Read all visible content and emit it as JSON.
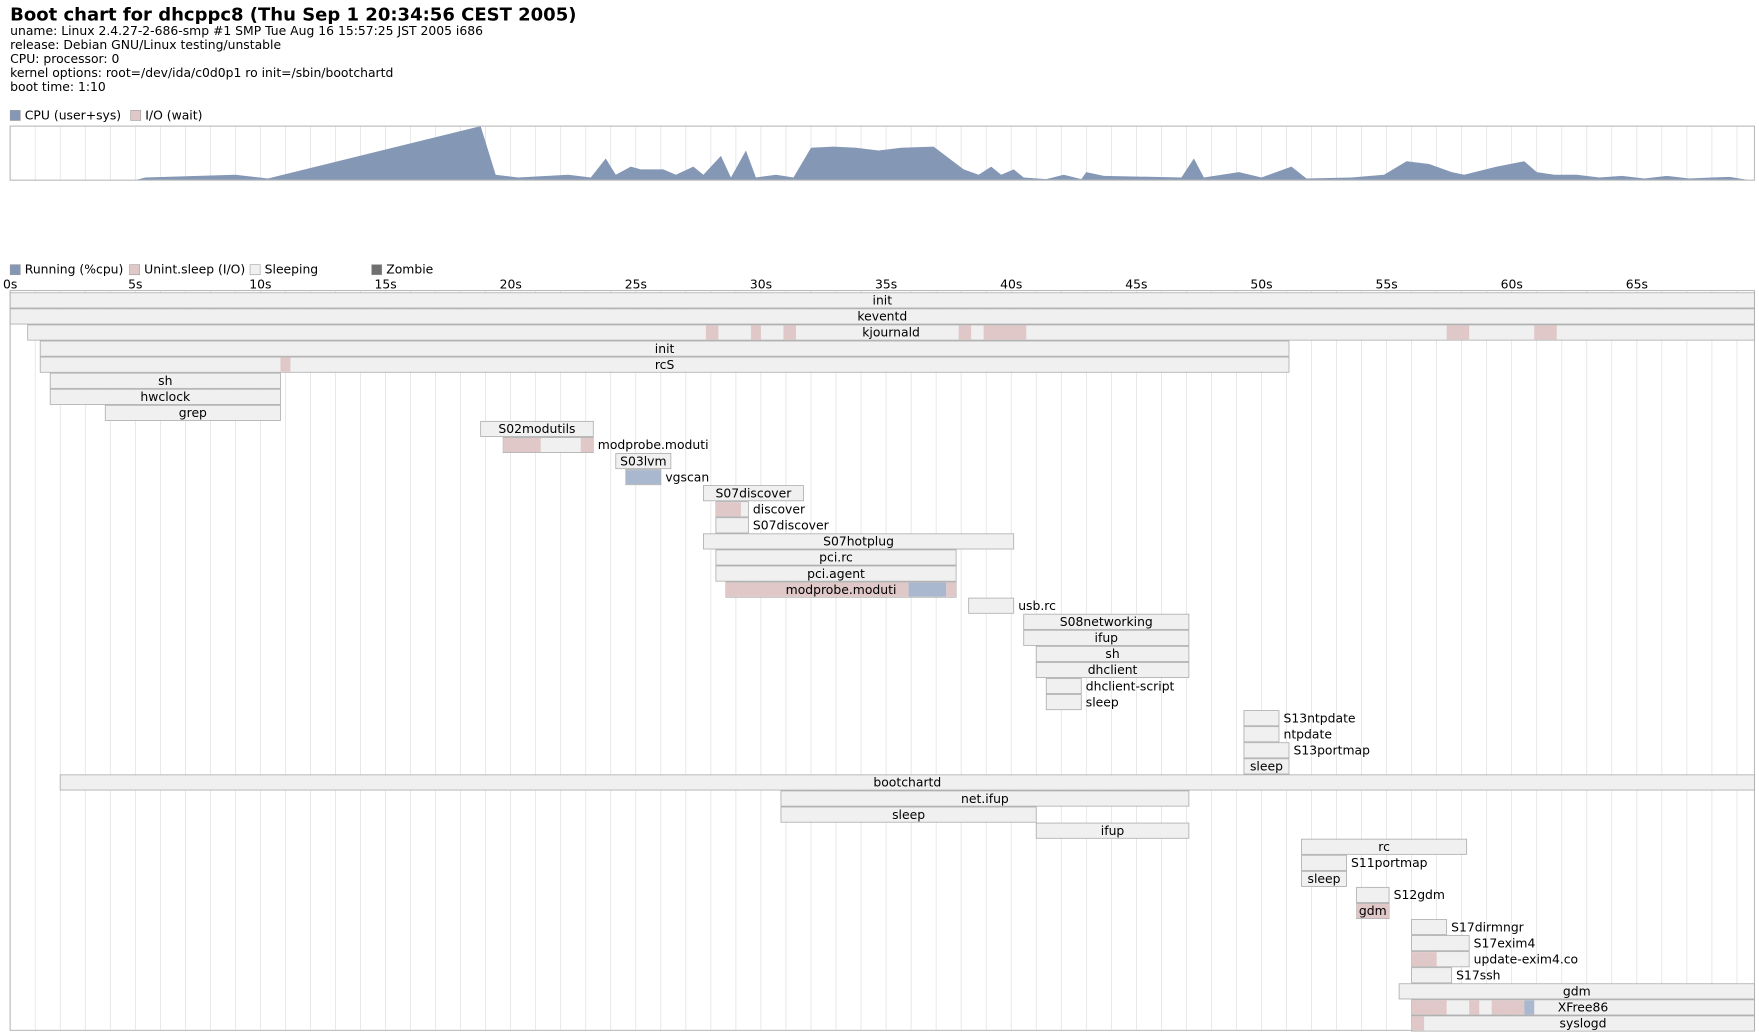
{
  "header": {
    "title": "Boot chart for dhcppc8 (Thu Sep  1 20:34:56 CEST 2005)",
    "lines": [
      "uname: Linux 2.4.27-2-686-smp #1 SMP Tue Aug 16 15:57:25 JST 2005 i686",
      "release: Debian GNU/Linux testing/unstable",
      "CPU: processor: 0",
      "kernel options: root=/dev/ida/c0d0p1 ro  init=/sbin/bootchartd",
      "boot time: 1:10"
    ]
  },
  "chart_data": [
    {
      "type": "area",
      "x": [
        0,
        5.0,
        5.4,
        9.0,
        10.3,
        18.8,
        19.4,
        20.3,
        22.3,
        23.2,
        23.8,
        24.2,
        24.8,
        25.2,
        26.1,
        26.6,
        27.3,
        27.7,
        28.4,
        28.8,
        29.4,
        29.8,
        30.6,
        31.3,
        32.0,
        32.9,
        33.8,
        34.7,
        35.6,
        36.9,
        38.1,
        38.7,
        39.2,
        39.6,
        40.1,
        40.5,
        41.4,
        42.1,
        42.8,
        43.0,
        43.7,
        46.8,
        47.3,
        47.7,
        49.1,
        50.0,
        51.2,
        51.8,
        53.6,
        54.9,
        55.8,
        56.7,
        57.6,
        58.1,
        59.4,
        60.5,
        61.0,
        61.7,
        62.6,
        63.5,
        64.4,
        65.3,
        66.2,
        67.1,
        68.0,
        68.7,
        69.5
      ],
      "series": [
        {
          "name": "CPU (user+sys)",
          "color": "#8497b5",
          "values": [
            0,
            0,
            5,
            10,
            3,
            100,
            10,
            5,
            10,
            5,
            40,
            10,
            25,
            20,
            20,
            10,
            25,
            10,
            45,
            5,
            55,
            5,
            10,
            5,
            60,
            62,
            60,
            55,
            60,
            62,
            20,
            10,
            25,
            10,
            20,
            5,
            2,
            10,
            2,
            15,
            8,
            5,
            40,
            5,
            15,
            5,
            25,
            3,
            5,
            10,
            35,
            30,
            15,
            10,
            25,
            35,
            15,
            10,
            10,
            5,
            8,
            3,
            8,
            3,
            5,
            6,
            0
          ]
        },
        {
          "name": "I/O (wait)",
          "color": "#e0c8c8"
        }
      ],
      "xlim": [
        0,
        69.7
      ],
      "ylim": [
        0,
        100
      ],
      "xgrid": [
        0,
        1,
        2,
        3,
        4,
        5,
        6,
        7,
        8,
        9,
        10,
        11,
        12,
        13,
        14,
        15,
        16,
        17,
        18,
        19,
        20,
        21,
        22,
        23,
        24,
        25,
        26,
        27,
        28,
        29,
        30,
        31,
        32,
        33,
        34,
        35,
        36,
        37,
        38,
        39,
        40,
        41,
        42,
        43,
        44,
        45,
        46,
        47,
        48,
        49,
        50,
        51,
        52,
        53,
        54,
        55,
        56,
        57,
        58,
        59,
        60,
        61,
        62,
        63,
        64,
        65,
        66,
        67,
        68,
        69
      ]
    },
    {
      "type": "gantt",
      "states": [
        {
          "name": "Running (%cpu)",
          "color": "#8497b5"
        },
        {
          "name": "Unint.sleep (I/O)",
          "color": "#e0c8c8"
        },
        {
          "name": "Sleeping",
          "color": "#f0f0f0"
        },
        {
          "name": "Zombie",
          "color": "#707070"
        }
      ],
      "xlim": [
        0,
        69.7
      ],
      "xticks": [
        {
          "value": 0,
          "label": "0s"
        },
        {
          "value": 5,
          "label": "5s"
        },
        {
          "value": 10,
          "label": "10s"
        },
        {
          "value": 15,
          "label": "15s"
        },
        {
          "value": 20,
          "label": "20s"
        },
        {
          "value": 25,
          "label": "25s"
        },
        {
          "value": 30,
          "label": "30s"
        },
        {
          "value": 35,
          "label": "35s"
        },
        {
          "value": 40,
          "label": "40s"
        },
        {
          "value": 45,
          "label": "45s"
        },
        {
          "value": 50,
          "label": "50s"
        },
        {
          "value": 55,
          "label": "55s"
        },
        {
          "value": 60,
          "label": "60s"
        },
        {
          "value": 65,
          "label": "65s"
        }
      ],
      "xgrid": [
        0,
        1,
        2,
        3,
        4,
        5,
        6,
        7,
        8,
        9,
        10,
        11,
        12,
        13,
        14,
        15,
        16,
        17,
        18,
        19,
        20,
        21,
        22,
        23,
        24,
        25,
        26,
        27,
        28,
        29,
        30,
        31,
        32,
        33,
        34,
        35,
        36,
        37,
        38,
        39,
        40,
        41,
        42,
        43,
        44,
        45,
        46,
        47,
        48,
        49,
        50,
        51,
        52,
        53,
        54,
        55,
        56,
        57,
        58,
        59,
        60,
        61,
        62,
        63,
        64,
        65,
        66,
        67,
        68,
        69
      ],
      "processes": [
        {
          "name": "init",
          "start": 0,
          "end": 69.7
        },
        {
          "name": "keventd",
          "start": 0,
          "end": 69.7
        },
        {
          "name": "kjournald",
          "start": 0.7,
          "end": 69.7,
          "io": [
            [
              27.8,
              28.3
            ],
            [
              29.6,
              30.0
            ],
            [
              30.9,
              31.4
            ],
            [
              37.9,
              38.4
            ],
            [
              38.9,
              40.6
            ],
            [
              57.4,
              58.3
            ],
            [
              60.9,
              61.8
            ]
          ]
        },
        {
          "name": "init",
          "start": 1.2,
          "end": 51.1
        },
        {
          "name": "rcS",
          "start": 1.2,
          "end": 51.1,
          "io": [
            [
              10.8,
              11.2
            ]
          ]
        },
        {
          "name": "sh",
          "start": 1.6,
          "end": 10.8
        },
        {
          "name": "hwclock",
          "start": 1.6,
          "end": 10.8
        },
        {
          "name": "grep",
          "start": 3.8,
          "end": 10.8
        },
        {
          "name": "S02modutils",
          "start": 18.8,
          "end": 23.3
        },
        {
          "name": "modprobe.moduti",
          "start": 19.7,
          "end": 23.3,
          "io": [
            [
              19.7,
              21.2
            ],
            [
              22.8,
              23.3
            ]
          ]
        },
        {
          "name": "S03lvm",
          "start": 24.2,
          "end": 26.4
        },
        {
          "name": "vgscan",
          "start": 24.6,
          "end": 26.0,
          "run": [
            [
              24.6,
              26.0
            ]
          ]
        },
        {
          "name": "S07discover",
          "start": 27.7,
          "end": 31.7
        },
        {
          "name": "discover",
          "start": 28.2,
          "end": 29.5,
          "io": [
            [
              28.2,
              29.2
            ]
          ]
        },
        {
          "name": "S07discover",
          "start": 28.2,
          "end": 29.5
        },
        {
          "name": "S07hotplug",
          "start": 27.7,
          "end": 40.1
        },
        {
          "name": "pci.rc",
          "start": 28.2,
          "end": 37.8
        },
        {
          "name": "pci.agent",
          "start": 28.2,
          "end": 37.8
        },
        {
          "name": "modprobe.moduti",
          "start": 28.6,
          "end": 37.8,
          "io": [
            [
              28.6,
              35.9
            ],
            [
              37.4,
              37.8
            ]
          ],
          "run": [
            [
              35.9,
              37.4
            ]
          ]
        },
        {
          "name": "usb.rc",
          "start": 38.3,
          "end": 40.1
        },
        {
          "name": "S08networking",
          "start": 40.5,
          "end": 47.1
        },
        {
          "name": "ifup",
          "start": 40.5,
          "end": 47.1
        },
        {
          "name": "sh",
          "start": 41.0,
          "end": 47.1
        },
        {
          "name": "dhclient",
          "start": 41.0,
          "end": 47.1
        },
        {
          "name": "dhclient-script",
          "start": 41.4,
          "end": 42.8
        },
        {
          "name": "sleep",
          "start": 41.4,
          "end": 42.8
        },
        {
          "name": "S13ntpdate",
          "start": 49.3,
          "end": 50.7
        },
        {
          "name": "ntpdate",
          "start": 49.3,
          "end": 50.7
        },
        {
          "name": "S13portmap",
          "start": 49.3,
          "end": 51.1
        },
        {
          "name": "sleep",
          "start": 49.3,
          "end": 51.1
        },
        {
          "name": "bootchartd",
          "start": 2.0,
          "end": 69.7
        },
        {
          "name": "net.ifup",
          "start": 30.8,
          "end": 47.1
        },
        {
          "name": "sleep",
          "start": 30.8,
          "end": 41.0
        },
        {
          "name": "ifup",
          "start": 41.0,
          "end": 47.1
        },
        {
          "name": "rc",
          "start": 51.6,
          "end": 58.2
        },
        {
          "name": "S11portmap",
          "start": 51.6,
          "end": 53.4
        },
        {
          "name": "sleep",
          "start": 51.6,
          "end": 53.4
        },
        {
          "name": "S12gdm",
          "start": 53.8,
          "end": 55.1
        },
        {
          "name": "gdm",
          "start": 53.8,
          "end": 55.1,
          "io": [
            [
              53.8,
              55.1
            ]
          ]
        },
        {
          "name": "S17dirmngr",
          "start": 56.0,
          "end": 57.4
        },
        {
          "name": "S17exim4",
          "start": 56.0,
          "end": 58.3
        },
        {
          "name": "update-exim4.co",
          "start": 56.0,
          "end": 58.3,
          "io": [
            [
              56.0,
              57.0
            ]
          ]
        },
        {
          "name": "S17ssh",
          "start": 56.0,
          "end": 57.6
        },
        {
          "name": "gdm",
          "start": 55.5,
          "end": 69.7
        },
        {
          "name": "XFree86",
          "start": 56.0,
          "end": 69.7,
          "io": [
            [
              56.0,
              57.4
            ],
            [
              58.3,
              58.7
            ],
            [
              59.2,
              60.5
            ]
          ],
          "run": [
            [
              60.5,
              60.9
            ]
          ]
        },
        {
          "name": "syslogd",
          "start": 56.0,
          "end": 69.7,
          "io": [
            [
              56.0,
              56.5
            ]
          ]
        }
      ]
    }
  ]
}
